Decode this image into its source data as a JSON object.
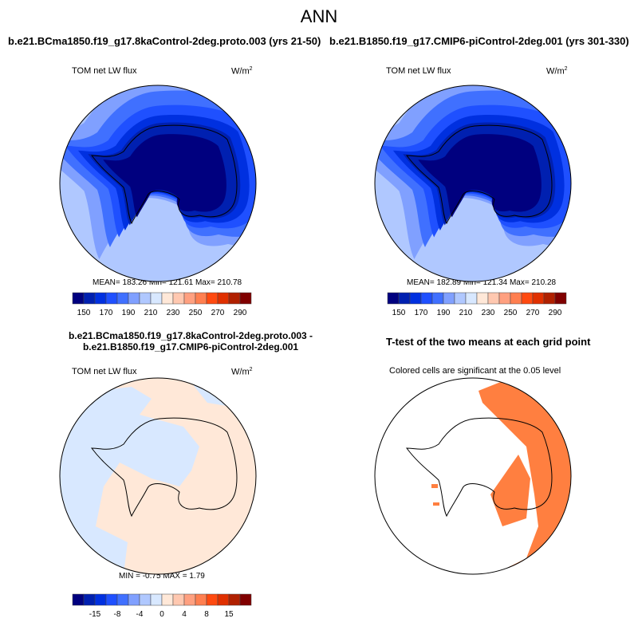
{
  "title": "ANN",
  "panels": [
    {
      "title": "b.e21.BCma1850.f19_g17.8kaControl-2deg.proto.003 (yrs 21-50)",
      "left_label": "TOM net LW flux",
      "units": "W/m",
      "units_sup": "2",
      "stats": "MEAN= 183.26  Min= 121.61  Max= 210.78"
    },
    {
      "title": "b.e21.B1850.f19_g17.CMIP6-piControl-2deg.001 (yrs 301-330)",
      "left_label": "TOM net LW flux",
      "units": "W/m",
      "units_sup": "2",
      "stats": "MEAN= 182.89  Min= 121.34  Max= 210.28"
    },
    {
      "title": "b.e21.BCma1850.f19_g17.8kaControl-2deg.proto.003 - b.e21.B1850.f19_g17.CMIP6-piControl-2deg.001",
      "left_label": "TOM net LW flux",
      "units": "W/m",
      "units_sup": "2",
      "stats": "MIN =  -0.75 MAX =   1.79"
    },
    {
      "title": "T-test of the two means at each grid point",
      "subtitle": "Colored cells are significant at the 0.05 level"
    }
  ],
  "chart_data": [
    {
      "type": "heatmap",
      "projection": "south-polar-stereographic",
      "variable": "TOM net LW flux",
      "units": "W/m2",
      "mean": 183.26,
      "min": 121.61,
      "max": 210.78,
      "colorbar_ticks": [
        "150",
        "170",
        "190",
        "210",
        "230",
        "250",
        "270",
        "290"
      ]
    },
    {
      "type": "heatmap",
      "projection": "south-polar-stereographic",
      "variable": "TOM net LW flux",
      "units": "W/m2",
      "mean": 182.89,
      "min": 121.34,
      "max": 210.28,
      "colorbar_ticks": [
        "150",
        "170",
        "190",
        "210",
        "230",
        "250",
        "270",
        "290"
      ]
    },
    {
      "type": "heatmap",
      "projection": "south-polar-stereographic",
      "variable": "TOM net LW flux difference",
      "units": "W/m2",
      "min": -0.75,
      "max": 1.79,
      "colorbar_ticks": [
        "-15",
        "-8",
        "-4",
        "0",
        "4",
        "8",
        "15"
      ]
    },
    {
      "type": "heatmap",
      "projection": "south-polar-stereographic",
      "variable": "t-test significance",
      "significance_level": 0.05
    }
  ],
  "palette": [
    "#00007f",
    "#0020b0",
    "#0030e0",
    "#1f50ff",
    "#4070ff",
    "#80a0ff",
    "#b0c8ff",
    "#d8e8ff",
    "#ffe8d8",
    "#ffc8b0",
    "#ffa080",
    "#ff7f50",
    "#ff4a10",
    "#e03000",
    "#b02000",
    "#800000"
  ],
  "sig_color": "#ff7f40"
}
